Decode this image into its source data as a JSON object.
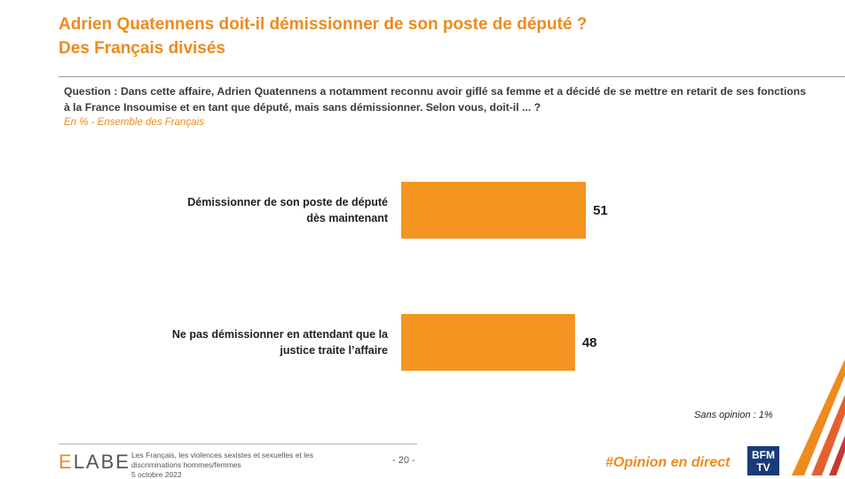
{
  "header": {
    "title_line1": "Adrien Quatennens doit-il démissionner de son poste de député ?",
    "title_line2": "Des Français divisés"
  },
  "question": "Question : Dans cette affaire, Adrien Quatennens a notamment reconnu avoir giflé sa femme et a décidé de se mettre en retarit de ses fonctions à la France Insoumise et en tant que député, mais sans démissionner. Selon vous, doit-il ... ?",
  "base_note": "En % - Ensemble des Français",
  "chart_data": {
    "type": "bar",
    "orientation": "horizontal",
    "unit": "%",
    "categories": [
      [
        "Démissionner de son poste de député",
        "dès maintenant"
      ],
      [
        "Ne pas démissionner en attendant que la",
        "justice traite l’affaire"
      ]
    ],
    "values": [
      51,
      48
    ],
    "color": "#F39520",
    "value_labels": [
      "51",
      "48"
    ]
  },
  "no_opinion": "Sans opinion : 1%",
  "footer": {
    "brand_first": "E",
    "brand_rest": "LABE",
    "description": "Les Français, les violences sexistes et sexuelles et les discriminations hommes/femmes",
    "date": "5 octobre 2022",
    "page_number": "- 20 -",
    "hashtag": "#Opinion en direct",
    "partner_logo": "BFM TV"
  },
  "colors": {
    "accent": "#EE8A1E",
    "bar": "#F39520"
  }
}
